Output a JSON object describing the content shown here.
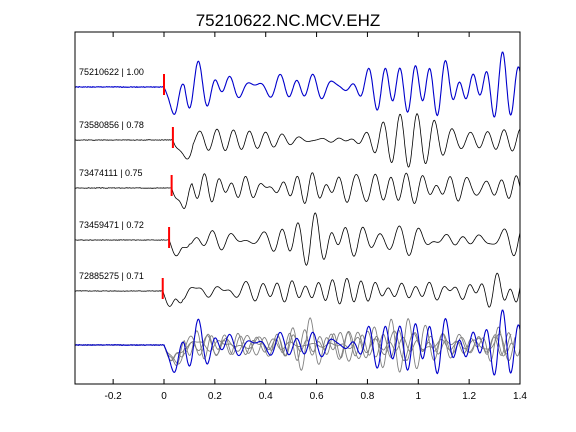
{
  "chart_data": {
    "type": "line",
    "title": "75210622.NC.MCV.EHZ",
    "xlabel": "",
    "ylabel": "",
    "xlim": [
      -0.35,
      1.4
    ],
    "x_ticks": [
      -0.2,
      0,
      0.2,
      0.4,
      0.6,
      0.8,
      1,
      1.2,
      1.4
    ],
    "x_tick_labels": [
      "-0.2",
      "0",
      "0.2",
      "0.4",
      "0.6",
      "0.8",
      "1",
      "1.2",
      "1.4"
    ],
    "grid": false,
    "legend": "none",
    "colors": {
      "primary_trace": "#0000cc",
      "secondary_trace": "#000000",
      "overlay_trace": "#808080",
      "pick_marker": "#ff0000",
      "axes": "#000000"
    },
    "series": [
      {
        "label": "75210622 | 1.00",
        "event_id": "75210622",
        "correlation": 1.0,
        "pick_time": 0.0,
        "color": "#0000cc",
        "amplitude": 1.0,
        "seed": 1
      },
      {
        "label": "73580856 | 0.78",
        "event_id": "73580856",
        "correlation": 0.78,
        "pick_time": 0.035,
        "color": "#000000",
        "amplitude": 0.8,
        "seed": 2
      },
      {
        "label": "73474111 | 0.75",
        "event_id": "73474111",
        "correlation": 0.75,
        "pick_time": 0.03,
        "color": "#000000",
        "amplitude": 0.8,
        "seed": 3
      },
      {
        "label": "73459471 | 0.72",
        "event_id": "73459471",
        "correlation": 0.72,
        "pick_time": 0.02,
        "color": "#000000",
        "amplitude": 0.75,
        "seed": 4
      },
      {
        "label": "72885275 | 0.71",
        "event_id": "72885275",
        "correlation": 0.71,
        "pick_time": -0.005,
        "color": "#000000",
        "amplitude": 0.8,
        "seed": 5
      }
    ],
    "stack": {
      "description": "aligned overlay of all traces",
      "primary_color": "#0000cc",
      "overlay_color": "#808080"
    }
  }
}
